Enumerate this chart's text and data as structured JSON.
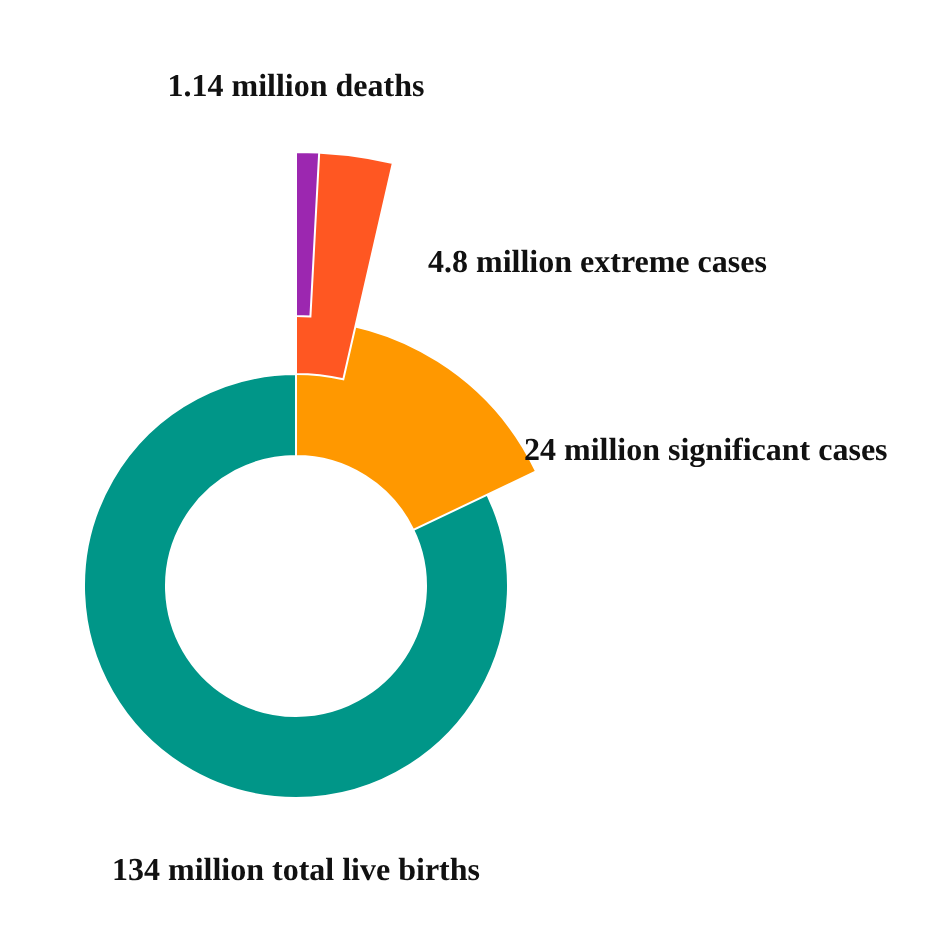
{
  "chart_data": {
    "type": "other",
    "categories": [
      "million total live births",
      "million significant cases",
      "million extreme cases",
      "million deaths"
    ],
    "values": [
      134,
      24,
      4.8,
      1.14
    ],
    "data_labels": true,
    "colors": [
      "#009688",
      "#ff9800",
      "#ff5722",
      "#9c27b0"
    ]
  }
}
